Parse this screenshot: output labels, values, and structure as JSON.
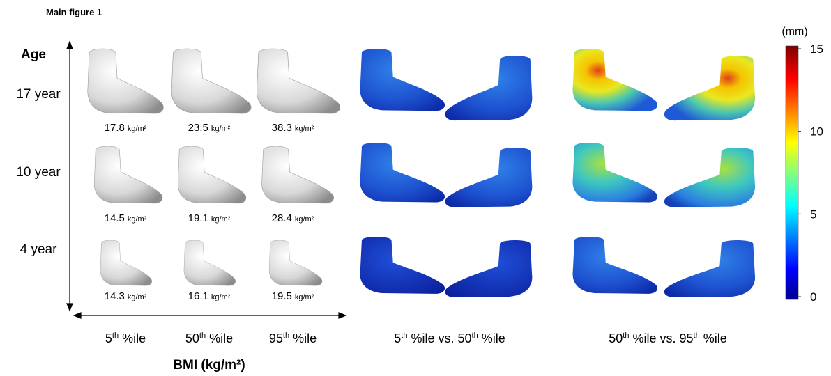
{
  "header": {
    "title": "Main figure 1"
  },
  "axis": {
    "age_label": "Age",
    "bmi_label": "BMI (kg/m²)"
  },
  "bmi_unit": "kg/m²",
  "rows": [
    {
      "label": "17 year",
      "bmi": [
        17.8,
        23.5,
        38.3
      ]
    },
    {
      "label": "10 year",
      "bmi": [
        14.5,
        19.1,
        28.4
      ]
    },
    {
      "label": "4 year",
      "bmi": [
        14.3,
        16.1,
        19.5
      ]
    }
  ],
  "columns": [
    {
      "base": "5",
      "sup": "th",
      "tail": "%ile"
    },
    {
      "base": "50",
      "sup": "th",
      "tail": "%ile"
    },
    {
      "base": "95",
      "sup": "th",
      "tail": "%ile"
    }
  ],
  "comparisons": [
    {
      "left": {
        "base": "5",
        "sup": "th",
        "tail": "%ile"
      },
      "joiner": "vs.",
      "right": {
        "base": "50",
        "sup": "th",
        "tail": "%ile"
      }
    },
    {
      "left": {
        "base": "50",
        "sup": "th",
        "tail": "%ile"
      },
      "joiner": "vs.",
      "right": {
        "base": "95",
        "sup": "th",
        "tail": "%ile"
      }
    }
  ],
  "colorbar": {
    "unit": "(mm)",
    "range": [
      0,
      15
    ],
    "ticks": [
      0,
      5,
      10,
      15
    ]
  }
}
